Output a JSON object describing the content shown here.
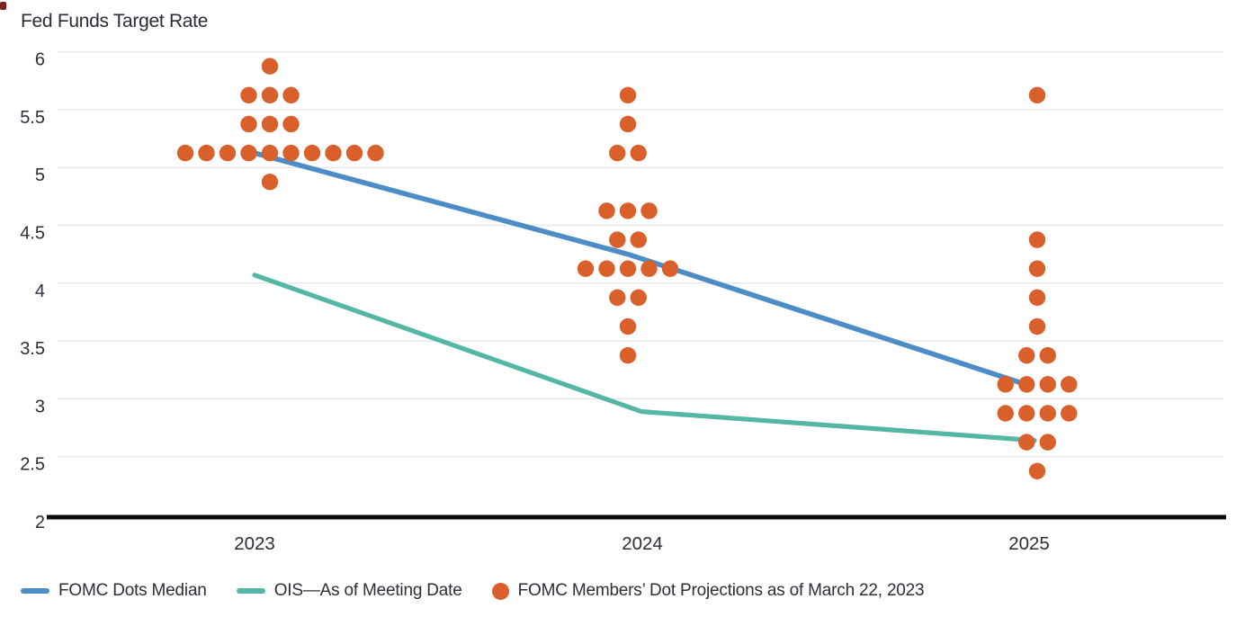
{
  "title": "Fed Funds Target Rate",
  "colors": {
    "dots": "#D95F2B",
    "median_line": "#4C8CC7",
    "ois_line": "#54B7A6",
    "text": "#2E2E3A",
    "grid": "#E8E8E8",
    "axis": "#0B0B0B",
    "corner_mark": "#7E211A"
  },
  "chart_data": {
    "type": "scatter",
    "subtype": "fomc-dot-plot",
    "title": "Fed Funds Target Rate",
    "xlabel": "",
    "ylabel": "Fed Funds Target Rate",
    "ylim": [
      2,
      6
    ],
    "yticks": [
      2,
      2.5,
      3,
      3.5,
      4,
      4.5,
      5,
      5.5,
      6
    ],
    "categories": [
      "2023",
      "2024",
      "2025"
    ],
    "grid": "horizontal",
    "legend_position": "bottom",
    "dot_clusters": [
      {
        "year": "2023",
        "rows": [
          {
            "rate": 5.875,
            "count": 1
          },
          {
            "rate": 5.625,
            "count": 3
          },
          {
            "rate": 5.375,
            "count": 3
          },
          {
            "rate": 5.125,
            "count": 10
          },
          {
            "rate": 4.875,
            "count": 1
          }
        ]
      },
      {
        "year": "2024",
        "rows": [
          {
            "rate": 5.625,
            "count": 1
          },
          {
            "rate": 5.375,
            "count": 1
          },
          {
            "rate": 5.125,
            "count": 2
          },
          {
            "rate": 4.625,
            "count": 3
          },
          {
            "rate": 4.375,
            "count": 2
          },
          {
            "rate": 4.125,
            "count": 5
          },
          {
            "rate": 3.875,
            "count": 2
          },
          {
            "rate": 3.625,
            "count": 1
          },
          {
            "rate": 3.375,
            "count": 1
          }
        ]
      },
      {
        "year": "2025",
        "rows": [
          {
            "rate": 5.625,
            "count": 1
          },
          {
            "rate": 4.375,
            "count": 1
          },
          {
            "rate": 4.125,
            "count": 1
          },
          {
            "rate": 3.875,
            "count": 1
          },
          {
            "rate": 3.625,
            "count": 1
          },
          {
            "rate": 3.375,
            "count": 2
          },
          {
            "rate": 3.125,
            "count": 4
          },
          {
            "rate": 2.875,
            "count": 4
          },
          {
            "rate": 2.625,
            "count": 2
          },
          {
            "rate": 2.375,
            "count": 1
          }
        ]
      }
    ],
    "series": [
      {
        "name": "FOMC Dots Median",
        "type": "line",
        "color_key": "median_line",
        "values": [
          5.125,
          4.25,
          3.125
        ]
      },
      {
        "name": "OIS—As of Meeting Date",
        "type": "line",
        "color_key": "ois_line",
        "values": [
          4.07,
          2.89,
          2.64
        ]
      }
    ]
  },
  "legend": [
    {
      "swatch": "line",
      "color_key": "median_line",
      "label": "FOMC Dots Median"
    },
    {
      "swatch": "line",
      "color_key": "ois_line",
      "label": "OIS—As of Meeting Date"
    },
    {
      "swatch": "dot",
      "color_key": "dots",
      "label": "FOMC Members’ Dot Projections as of March 22, 2023"
    }
  ]
}
